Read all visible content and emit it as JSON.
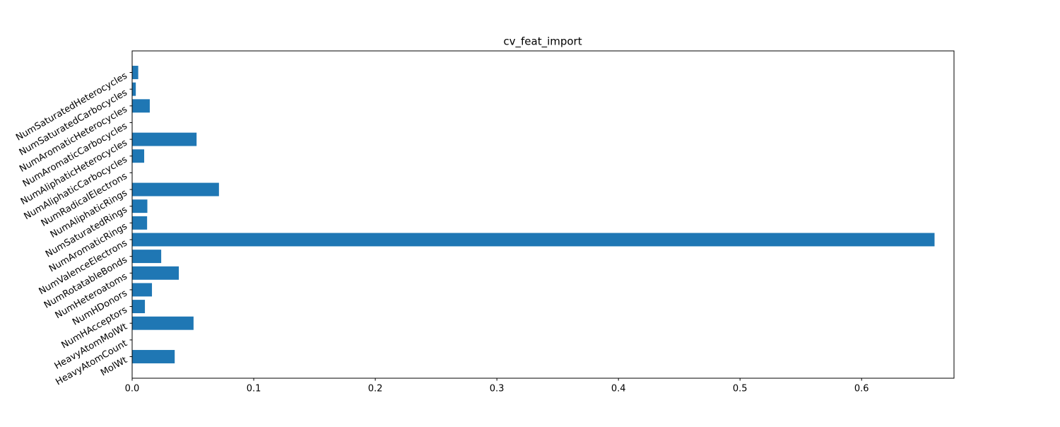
{
  "chart_data": {
    "type": "barh",
    "title": "cv_feat_import",
    "categories": [
      "MolWt",
      "HeavyAtomCount",
      "HeavyAtomMolWt",
      "NumHAcceptors",
      "NumHDonors",
      "NumHeteroatoms",
      "NumRotatableBonds",
      "NumValenceElectrons",
      "NumAromaticRings",
      "NumSaturatedRings",
      "NumAliphaticRings",
      "NumRadicalElectrons",
      "NumAliphaticCarbocycles",
      "NumAliphaticHeterocycles",
      "NumAromaticCarbocycles",
      "NumAromaticHeterocycles",
      "NumSaturatedCarbocycles",
      "NumSaturatedHeterocycles"
    ],
    "values": [
      0.035,
      0,
      0.0505,
      0.0105,
      0.0163,
      0.0384,
      0.0239,
      0.66,
      0.0123,
      0.0125,
      0.0714,
      0,
      0.0099,
      0.053,
      0,
      0.0145,
      0.003,
      0.005
    ],
    "color": "#1f77b4",
    "xlim": [
      0,
      0.676
    ],
    "xticks": [
      {
        "value": 0,
        "label": "0.0"
      },
      0.1,
      0.2,
      0.3,
      0.4,
      0.5,
      0.6
    ]
  }
}
